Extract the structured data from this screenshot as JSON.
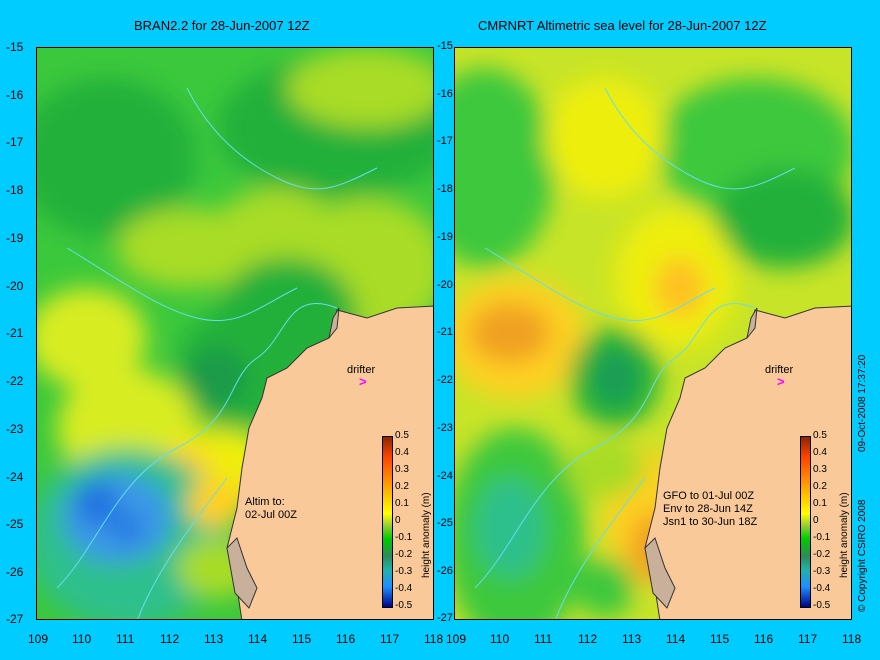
{
  "titles": {
    "left": "BRAN2.2 for 28-Jun-2007 12Z",
    "right": "CMRNRT Altimetric sea level  for 28-Jun-2007 12Z"
  },
  "y_ticks": [
    "-15",
    "-16",
    "-17",
    "-18",
    "-19",
    "-20",
    "-21",
    "-22",
    "-23",
    "-24",
    "-25",
    "-26",
    "-27"
  ],
  "x_ticks": [
    "109",
    "110",
    "111",
    "112",
    "113",
    "114",
    "115",
    "116",
    "117",
    "118"
  ],
  "left_panel": {
    "annotation": "Altim to:\n02-Jul 00Z",
    "drifter_label": "drifter"
  },
  "right_panel": {
    "annotation": "GFO to 01-Jul 00Z\nEnv to 28-Jun 14Z\nJsn1 to 30-Jun 18Z",
    "drifter_label": "drifter"
  },
  "colorbar": {
    "ticks": [
      "0.5",
      "0.4",
      "0.3",
      "0.2",
      "0.1",
      "0",
      "-0.1",
      "-0.2",
      "-0.3",
      "-0.4",
      "-0.5"
    ],
    "label": "height anomaly (m)"
  },
  "side_text": {
    "copyright": "© Copyright CSIRO 2008",
    "timestamp": "09-Oct-2008 17:37:20"
  },
  "colors": {
    "background": "#00ccff",
    "land": "#f9c99a",
    "drifter_arrow": "#ff00ff"
  },
  "drifter_symbol": ">"
}
